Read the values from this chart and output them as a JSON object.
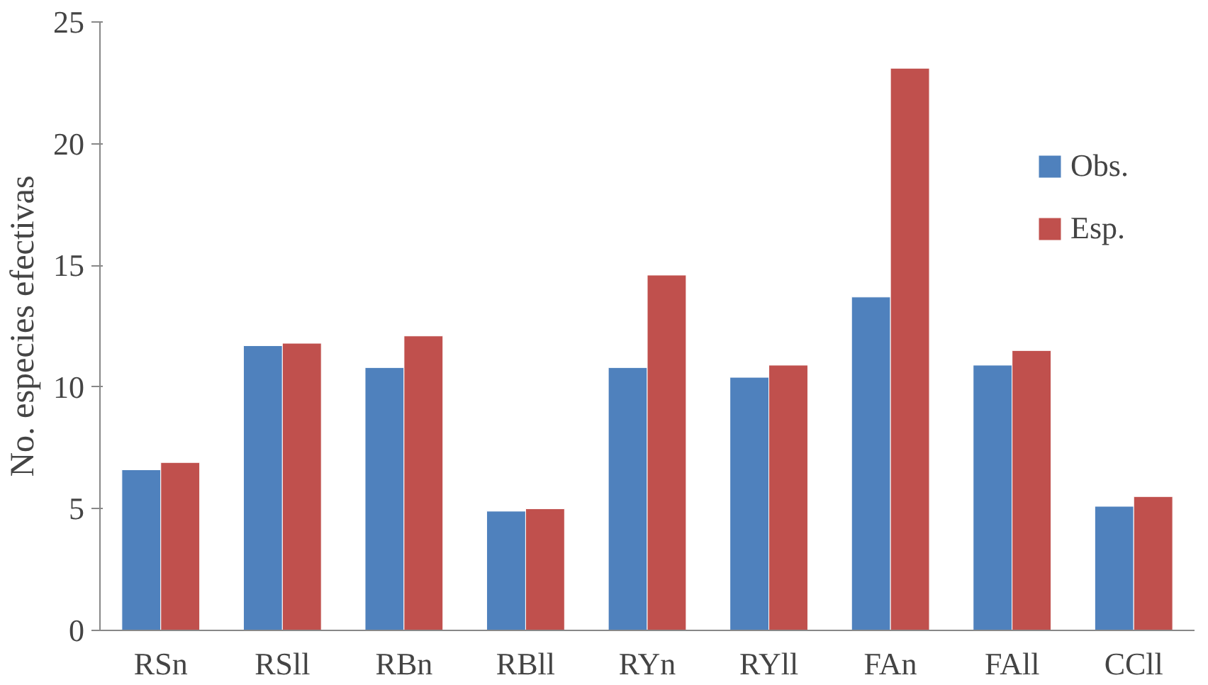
{
  "chart_data": {
    "type": "bar",
    "ylabel": "No. especies efectivas",
    "categories": [
      "RSn",
      "RSll",
      "RBn",
      "RBll",
      "RYn",
      "RYll",
      "FAn",
      "FAll",
      "CCll"
    ],
    "series": [
      {
        "name": "Obs.",
        "color": "#4f81bd",
        "values": [
          6.6,
          11.7,
          10.8,
          4.9,
          10.8,
          10.4,
          13.7,
          10.9,
          5.1
        ]
      },
      {
        "name": "Esp.",
        "color": "#c0504d",
        "values": [
          6.9,
          11.8,
          12.1,
          5.0,
          14.6,
          10.9,
          23.1,
          11.5,
          5.5
        ]
      }
    ],
    "ylim": [
      0,
      25
    ],
    "yticks": [
      0,
      5,
      10,
      15,
      20,
      25
    ],
    "grid": false,
    "legend": "top right"
  }
}
